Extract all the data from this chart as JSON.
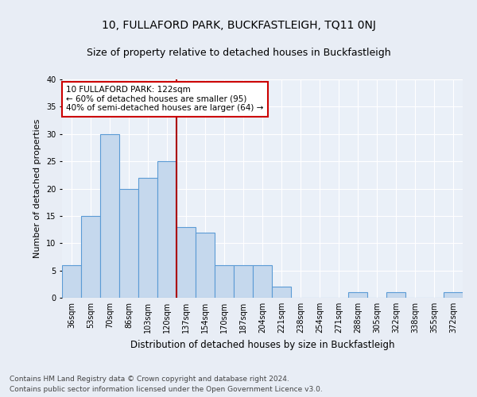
{
  "title1": "10, FULLAFORD PARK, BUCKFASTLEIGH, TQ11 0NJ",
  "title2": "Size of property relative to detached houses in Buckfastleigh",
  "xlabel": "Distribution of detached houses by size in Buckfastleigh",
  "ylabel": "Number of detached properties",
  "categories": [
    "36sqm",
    "53sqm",
    "70sqm",
    "86sqm",
    "103sqm",
    "120sqm",
    "137sqm",
    "154sqm",
    "170sqm",
    "187sqm",
    "204sqm",
    "221sqm",
    "238sqm",
    "254sqm",
    "271sqm",
    "288sqm",
    "305sqm",
    "322sqm",
    "338sqm",
    "355sqm",
    "372sqm"
  ],
  "values": [
    6,
    15,
    30,
    20,
    22,
    25,
    13,
    12,
    6,
    6,
    6,
    2,
    0,
    0,
    0,
    1,
    0,
    1,
    0,
    0,
    1
  ],
  "bar_color": "#c5d8ed",
  "bar_edge_color": "#5b9bd5",
  "annotation_line1": "10 FULLAFORD PARK: 122sqm",
  "annotation_line2": "← 60% of detached houses are smaller (95)",
  "annotation_line3": "40% of semi-detached houses are larger (64) →",
  "annotation_box_color": "#ffffff",
  "annotation_box_edge_color": "#cc0000",
  "vline_color": "#aa0000",
  "ylim": [
    0,
    40
  ],
  "yticks": [
    0,
    5,
    10,
    15,
    20,
    25,
    30,
    35,
    40
  ],
  "property_bin_index": 5,
  "footer1": "Contains HM Land Registry data © Crown copyright and database right 2024.",
  "footer2": "Contains public sector information licensed under the Open Government Licence v3.0.",
  "bg_color": "#e8edf5",
  "plot_bg_color": "#eaf0f8",
  "grid_color": "#ffffff",
  "title1_fontsize": 10,
  "title2_fontsize": 9,
  "xlabel_fontsize": 8.5,
  "ylabel_fontsize": 8,
  "tick_fontsize": 7,
  "footer_fontsize": 6.5,
  "annotation_fontsize": 7.5
}
